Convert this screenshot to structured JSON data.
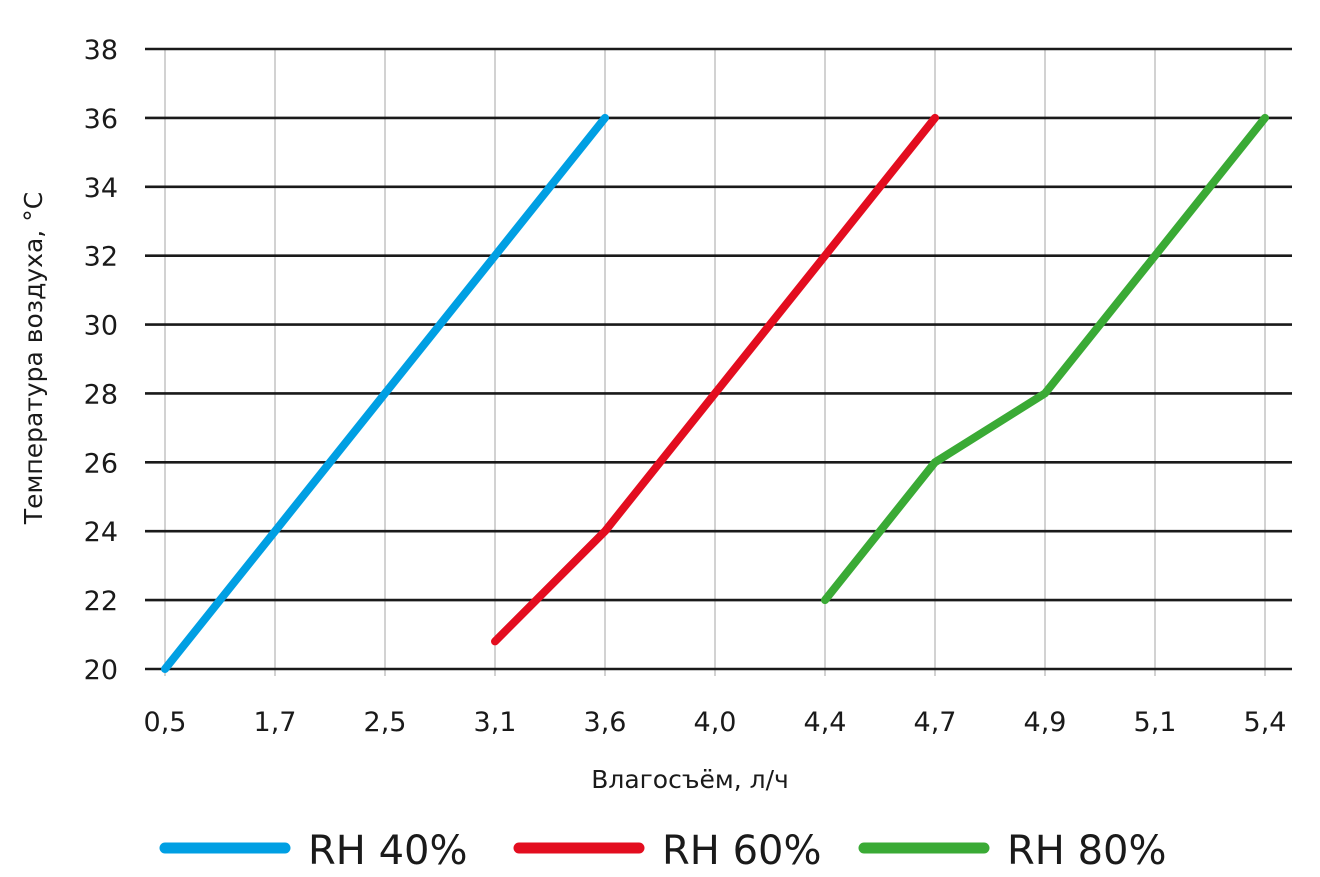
{
  "chart_data": {
    "type": "line",
    "xlabel": "Влагосъём, л/ч",
    "ylabel": "Температура воздуха, °C",
    "categories": [
      "0,5",
      "1,7",
      "2,5",
      "3,1",
      "3,6",
      "4,0",
      "4,4",
      "4,7",
      "4,9",
      "5,1",
      "5,4"
    ],
    "ylim": [
      20,
      38
    ],
    "yticks": [
      20,
      22,
      24,
      26,
      28,
      30,
      32,
      34,
      36,
      38
    ],
    "grid": true,
    "legend_position": "bottom",
    "series": [
      {
        "name": "RH 40%",
        "color": "#009fe3",
        "points": [
          {
            "x": "0,5",
            "y": 20
          },
          {
            "x": "1,7",
            "y": 24
          },
          {
            "x": "2,5",
            "y": 28
          },
          {
            "x": "3,1",
            "y": 32
          },
          {
            "x": "3,6",
            "y": 36
          }
        ]
      },
      {
        "name": "RH 60%",
        "color": "#e30d1f",
        "points": [
          {
            "x": "3,1",
            "y": 20.8
          },
          {
            "x": "3,6",
            "y": 24
          },
          {
            "x": "4,0",
            "y": 28
          },
          {
            "x": "4,4",
            "y": 32
          },
          {
            "x": "4,7",
            "y": 36
          }
        ]
      },
      {
        "name": "RH 80%",
        "color": "#3aaa35",
        "points": [
          {
            "x": "4,4",
            "y": 22
          },
          {
            "x": "4,7",
            "y": 26
          },
          {
            "x": "4,9",
            "y": 28
          },
          {
            "x": "5,1",
            "y": 32
          },
          {
            "x": "5,4",
            "y": 36
          }
        ]
      }
    ]
  }
}
